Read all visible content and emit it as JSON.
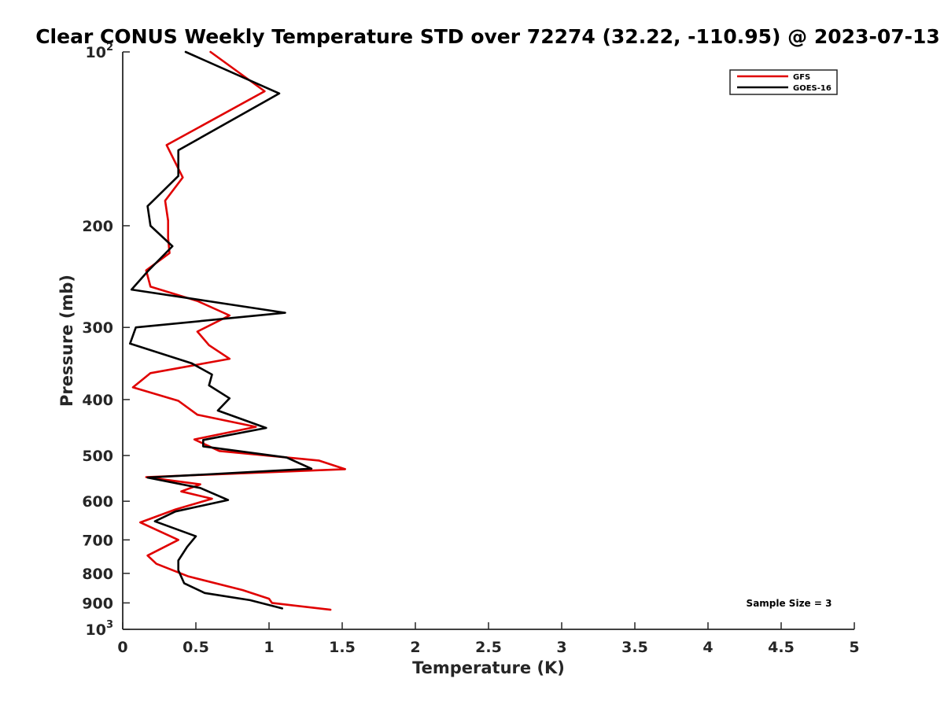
{
  "chart_data": {
    "type": "line",
    "title": "Clear CONUS Weekly Temperature STD over 72274 (32.22, -110.95) @ 2023-07-13",
    "xlabel": "Temperature (K)",
    "ylabel": "Pressure (mb)",
    "xlim": [
      0,
      5
    ],
    "ylim": [
      100,
      1000
    ],
    "yscale": "log",
    "y_reversed": true,
    "grid": false,
    "legend_position": "top-right",
    "xticks": [
      {
        "value": 0,
        "label": "0"
      },
      {
        "value": 0.5,
        "label": "0.5"
      },
      {
        "value": 1,
        "label": "1"
      },
      {
        "value": 1.5,
        "label": "1.5"
      },
      {
        "value": 2,
        "label": "2"
      },
      {
        "value": 2.5,
        "label": "2.5"
      },
      {
        "value": 3,
        "label": "3"
      },
      {
        "value": 3.5,
        "label": "3.5"
      },
      {
        "value": 4,
        "label": "4"
      },
      {
        "value": 4.5,
        "label": "4.5"
      },
      {
        "value": 5,
        "label": "5"
      }
    ],
    "yticks": [
      {
        "value": 100,
        "base": "10",
        "exp": "2"
      },
      {
        "value": 200,
        "base": "200",
        "exp": ""
      },
      {
        "value": 300,
        "base": "300",
        "exp": ""
      },
      {
        "value": 400,
        "base": "400",
        "exp": ""
      },
      {
        "value": 500,
        "base": "500",
        "exp": ""
      },
      {
        "value": 600,
        "base": "600",
        "exp": ""
      },
      {
        "value": 700,
        "base": "700",
        "exp": ""
      },
      {
        "value": 800,
        "base": "800",
        "exp": ""
      },
      {
        "value": 900,
        "base": "900",
        "exp": ""
      },
      {
        "value": 1000,
        "base": "10",
        "exp": "3"
      }
    ],
    "series": [
      {
        "name": "GFS",
        "color": "#e00000",
        "points": [
          [
            0.6,
            100
          ],
          [
            0.97,
            117
          ],
          [
            0.3,
            145
          ],
          [
            0.41,
            165
          ],
          [
            0.29,
            181
          ],
          [
            0.31,
            196
          ],
          [
            0.31,
            210
          ],
          [
            0.32,
            223
          ],
          [
            0.16,
            239
          ],
          [
            0.19,
            255
          ],
          [
            0.51,
            270
          ],
          [
            0.73,
            286
          ],
          [
            0.51,
            305
          ],
          [
            0.59,
            322
          ],
          [
            0.73,
            340
          ],
          [
            0.19,
            360
          ],
          [
            0.07,
            381
          ],
          [
            0.38,
            402
          ],
          [
            0.51,
            425
          ],
          [
            0.91,
            446
          ],
          [
            0.49,
            469
          ],
          [
            0.66,
            491
          ],
          [
            1.34,
            510
          ],
          [
            1.52,
            528
          ],
          [
            0.16,
            545
          ],
          [
            0.53,
            561
          ],
          [
            0.4,
            577
          ],
          [
            0.61,
            594
          ],
          [
            0.36,
            620
          ],
          [
            0.12,
            653
          ],
          [
            0.38,
            700
          ],
          [
            0.17,
            745
          ],
          [
            0.23,
            770
          ],
          [
            0.45,
            810
          ],
          [
            0.82,
            855
          ],
          [
            1.0,
            885
          ],
          [
            1.02,
            900
          ],
          [
            1.42,
            925
          ]
        ]
      },
      {
        "name": "GOES-16",
        "color": "#000000",
        "points": [
          [
            0.43,
            100
          ],
          [
            1.07,
            118
          ],
          [
            0.38,
            148
          ],
          [
            0.38,
            164
          ],
          [
            0.17,
            185
          ],
          [
            0.19,
            200
          ],
          [
            0.34,
            217
          ],
          [
            0.17,
            240
          ],
          [
            0.06,
            258
          ],
          [
            1.11,
            283
          ],
          [
            0.09,
            300
          ],
          [
            0.05,
            320
          ],
          [
            0.47,
            346
          ],
          [
            0.61,
            362
          ],
          [
            0.59,
            378
          ],
          [
            0.73,
            398
          ],
          [
            0.65,
            418
          ],
          [
            0.98,
            448
          ],
          [
            0.55,
            470
          ],
          [
            0.55,
            482
          ],
          [
            1.12,
            504
          ],
          [
            1.29,
            527
          ],
          [
            0.17,
            546
          ],
          [
            0.53,
            569
          ],
          [
            0.72,
            597
          ],
          [
            0.36,
            625
          ],
          [
            0.22,
            650
          ],
          [
            0.5,
            690
          ],
          [
            0.44,
            720
          ],
          [
            0.38,
            760
          ],
          [
            0.38,
            790
          ],
          [
            0.42,
            832
          ],
          [
            0.56,
            865
          ],
          [
            0.87,
            890
          ],
          [
            1.09,
            920
          ]
        ]
      }
    ],
    "annotation": "Sample Size = 3"
  }
}
